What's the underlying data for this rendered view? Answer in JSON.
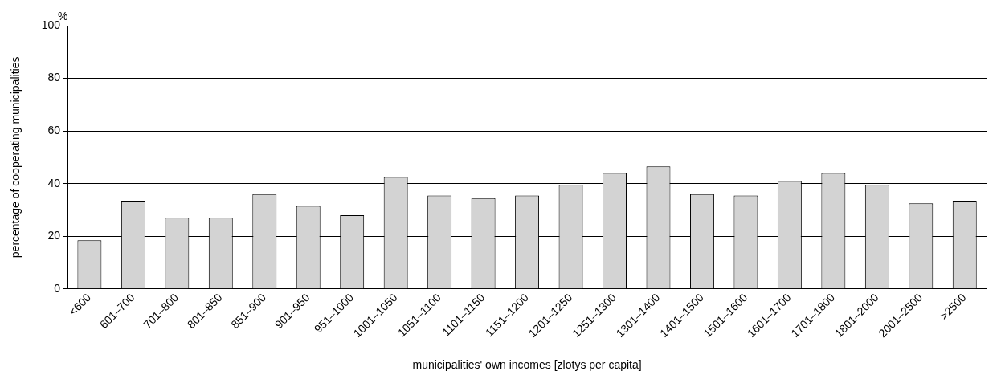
{
  "chart_data": {
    "type": "bar",
    "xlabel": "municipalities' own incomes [zlotys per capita]",
    "ylabel": "percentage of cooperating municipalities",
    "annotations": [
      "%"
    ],
    "categories": [
      "<600",
      "601–700",
      "701–800",
      "801–850",
      "851–900",
      "901–950",
      "951–1000",
      "1001–1050",
      "1051–1100",
      "1101–1150",
      "1151–1200",
      "1201–1250",
      "1251–1300",
      "1301–1400",
      "1401–1500",
      "1501–1600",
      "1601–1700",
      "1701–1800",
      "1801–2000",
      "2001–2500",
      ">2500"
    ],
    "values": [
      18.5,
      33.5,
      27,
      27,
      36,
      31.5,
      28,
      42.5,
      35.5,
      34.5,
      35.5,
      39.5,
      44,
      46.5,
      36,
      35.5,
      41,
      44,
      39.5,
      32.5,
      33.5
    ],
    "color": "#d3d3d3",
    "ylim": [
      0,
      100
    ],
    "yticks": [
      0,
      20,
      40,
      60,
      80,
      100
    ],
    "grid": "y",
    "legend": false
  }
}
